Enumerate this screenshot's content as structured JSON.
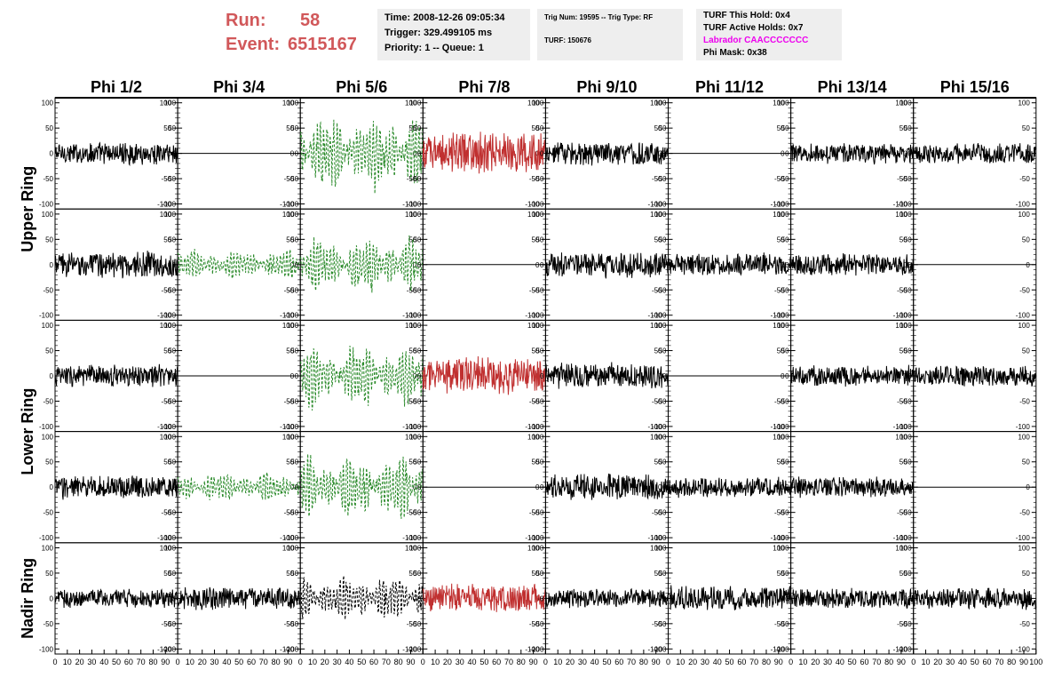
{
  "header": {
    "run_label": "Run:",
    "run_value": "58",
    "event_label": "Event:",
    "event_value": "6515167",
    "time": "Time: 2008-12-26 09:05:34",
    "trigger": "Trigger: 329.499105 ms",
    "priority": "Priority: 1 -- Queue: 1",
    "trig_num": "Trig Num: 19595 -- Trig Type: RF",
    "turf": "TURF: 150676",
    "turf_this_hold": "TURF This Hold: 0x4",
    "turf_active_holds": "TURF Active Holds: 0x7",
    "labrador": "Labrador CAACCCCCCC",
    "phi_mask": "Phi Mask: 0x38"
  },
  "colors": {
    "run_text": "#d1585a",
    "labrador_text": "#ee00ee",
    "normal_trace": "#000000",
    "triggered_trace": "#2a8a2a",
    "masked_trace": "#c03030"
  },
  "chart_data": {
    "type": "line",
    "columns": [
      "Phi 1/2",
      "Phi 3/4",
      "Phi 5/6",
      "Phi 7/8",
      "Phi 9/10",
      "Phi 11/12",
      "Phi 13/14",
      "Phi 15/16"
    ],
    "rows": [
      "Upper Ring",
      "Lower Ring",
      "Nadir Ring"
    ],
    "sub_rows": 5,
    "xlim": [
      0,
      100
    ],
    "ylim": [
      -110,
      110
    ],
    "y_ticks": [
      "100",
      "50",
      "0",
      "-50",
      "-100"
    ],
    "x_ticks": [
      "0",
      "10",
      "20",
      "30",
      "40",
      "50",
      "60",
      "70",
      "80",
      "90",
      "100"
    ],
    "panels": [
      [
        {
          "style": "solid",
          "color": "#000000",
          "amp": 24
        },
        {
          "style": "flat",
          "color": "#000000",
          "amp": 0
        },
        {
          "style": "dashed",
          "color": "#2a8a2a",
          "amp": 75
        },
        {
          "style": "solid",
          "color": "#c03030",
          "amp": 45
        },
        {
          "style": "solid",
          "color": "#000000",
          "amp": 26
        },
        {
          "style": "flat",
          "color": "#000000",
          "amp": 0
        },
        {
          "style": "solid",
          "color": "#000000",
          "amp": 22
        },
        {
          "style": "solid",
          "color": "#000000",
          "amp": 22
        }
      ],
      [
        {
          "style": "solid",
          "color": "#000000",
          "amp": 28
        },
        {
          "style": "dashed",
          "color": "#2a8a2a",
          "amp": 30
        },
        {
          "style": "dashed",
          "color": "#2a8a2a",
          "amp": 55
        },
        {
          "style": "flat",
          "color": "#000000",
          "amp": 0
        },
        {
          "style": "solid",
          "color": "#000000",
          "amp": 28
        },
        {
          "style": "solid",
          "color": "#000000",
          "amp": 24
        },
        {
          "style": "solid",
          "color": "#000000",
          "amp": 24
        },
        {
          "style": "flat",
          "color": "#000000",
          "amp": 0
        }
      ],
      [
        {
          "style": "solid",
          "color": "#000000",
          "amp": 24
        },
        {
          "style": "flat",
          "color": "#000000",
          "amp": 0
        },
        {
          "style": "dashed",
          "color": "#2a8a2a",
          "amp": 62
        },
        {
          "style": "solid",
          "color": "#c03030",
          "amp": 40
        },
        {
          "style": "solid",
          "color": "#000000",
          "amp": 28
        },
        {
          "style": "flat",
          "color": "#000000",
          "amp": 0
        },
        {
          "style": "solid",
          "color": "#000000",
          "amp": 22
        },
        {
          "style": "solid",
          "color": "#000000",
          "amp": 22
        }
      ],
      [
        {
          "style": "solid",
          "color": "#000000",
          "amp": 26
        },
        {
          "style": "dashed",
          "color": "#2a8a2a",
          "amp": 30
        },
        {
          "style": "dashed",
          "color": "#2a8a2a",
          "amp": 62
        },
        {
          "style": "flat",
          "color": "#000000",
          "amp": 0
        },
        {
          "style": "solid",
          "color": "#000000",
          "amp": 28
        },
        {
          "style": "solid",
          "color": "#000000",
          "amp": 22
        },
        {
          "style": "solid",
          "color": "#000000",
          "amp": 22
        },
        {
          "style": "flat",
          "color": "#000000",
          "amp": 0
        }
      ],
      [
        {
          "style": "solid",
          "color": "#000000",
          "amp": 20
        },
        {
          "style": "solid",
          "color": "#000000",
          "amp": 24
        },
        {
          "style": "dashed",
          "color": "#000000",
          "amp": 45
        },
        {
          "style": "solid",
          "color": "#c03030",
          "amp": 30
        },
        {
          "style": "solid",
          "color": "#000000",
          "amp": 20
        },
        {
          "style": "solid",
          "color": "#000000",
          "amp": 28
        },
        {
          "style": "solid",
          "color": "#000000",
          "amp": 22
        },
        {
          "style": "solid",
          "color": "#000000",
          "amp": 24
        }
      ]
    ]
  }
}
